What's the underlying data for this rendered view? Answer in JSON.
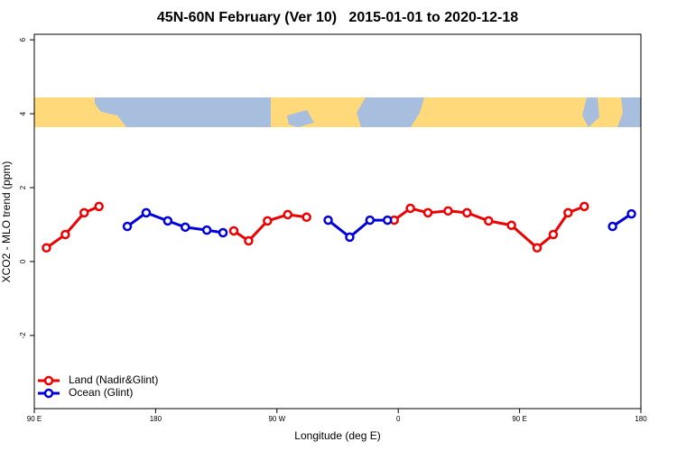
{
  "chart_data": {
    "type": "line",
    "title": "45N-60N February (Ver 10)   2015-01-01 to 2020-12-18",
    "x_label": "Longitude (deg E)",
    "y_label": "XCO2 - MLO trend (ppm)",
    "xlim": [
      90,
      540
    ],
    "ylim": [
      -3.98,
      6.15
    ],
    "xticks": [
      {
        "value": 90,
        "label": "90 E"
      },
      180,
      {
        "value": 270,
        "label": "90 W"
      },
      {
        "value": 360,
        "label": "0"
      },
      {
        "value": 450,
        "label": "90 E"
      },
      {
        "value": 540,
        "label": "180"
      }
    ],
    "yticks": [
      -2,
      0,
      2,
      4,
      6
    ],
    "legend": "bottom-left",
    "series": [
      {
        "name": "Land (Nadir&Glint)",
        "color": "#ee0000",
        "x": [
          99,
          113,
          127,
          138,
          null,
          238,
          249,
          263,
          278,
          292,
          null,
          357,
          369,
          382,
          397,
          411,
          427,
          444,
          463,
          475,
          486,
          498
        ],
        "values": [
          0.37,
          0.73,
          1.32,
          1.49,
          null,
          0.83,
          0.56,
          1.1,
          1.27,
          1.2,
          null,
          1.12,
          1.44,
          1.32,
          1.37,
          1.32,
          1.1,
          0.98,
          0.37,
          0.73,
          1.32,
          1.49
        ]
      },
      {
        "name": "Ocean (Glint)",
        "color": "#0000dd",
        "x": [
          159,
          173,
          189,
          202,
          218,
          230,
          null,
          308,
          324,
          339,
          352,
          null,
          519,
          533
        ],
        "values": [
          0.95,
          1.32,
          1.1,
          0.93,
          0.85,
          0.78,
          null,
          1.12,
          0.66,
          1.12,
          1.12,
          null,
          0.95,
          1.29
        ]
      }
    ]
  }
}
